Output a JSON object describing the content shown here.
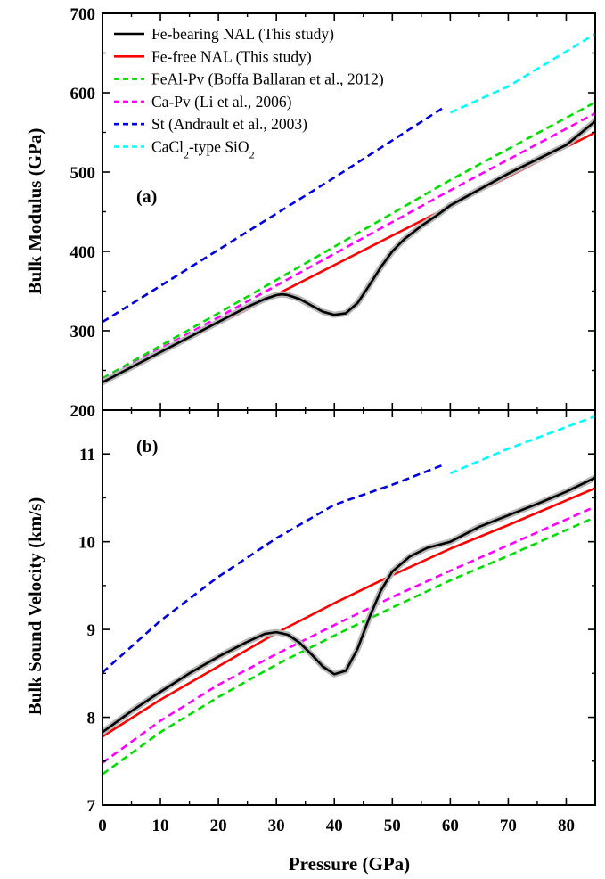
{
  "chart_data": [
    {
      "type": "line",
      "panel_label": "(a)",
      "xlabel": "Pressure (GPa)",
      "ylabel": "Bulk Modulus (GPa)",
      "xlim": [
        0,
        85
      ],
      "ylim": [
        200,
        700
      ],
      "yticks": [
        200,
        300,
        400,
        500,
        600,
        700
      ],
      "grid": false,
      "legend_position": "top-left",
      "series": [
        {
          "name": "Fe-bearing NAL (This study)",
          "color": "#000000",
          "dash": "solid",
          "uncertainty_band": true,
          "points": [
            [
              0,
              235
            ],
            [
              5,
              254
            ],
            [
              10,
              273
            ],
            [
              15,
              292
            ],
            [
              20,
              311
            ],
            [
              25,
              330
            ],
            [
              28,
              340
            ],
            [
              30,
              345
            ],
            [
              31,
              346
            ],
            [
              32,
              345
            ],
            [
              34,
              340
            ],
            [
              36,
              332
            ],
            [
              38,
              324
            ],
            [
              40,
              320
            ],
            [
              42,
              322
            ],
            [
              44,
              335
            ],
            [
              46,
              357
            ],
            [
              48,
              380
            ],
            [
              50,
              400
            ],
            [
              52,
              415
            ],
            [
              55,
              432
            ],
            [
              58,
              447
            ],
            [
              60,
              458
            ],
            [
              65,
              478
            ],
            [
              70,
              498
            ],
            [
              75,
              516
            ],
            [
              80,
              534
            ],
            [
              85,
              564
            ]
          ]
        },
        {
          "name": "Fe-free NAL (This study)",
          "color": "#ff0000",
          "dash": "solid",
          "points": [
            [
              0,
              234
            ],
            [
              85,
              550
            ]
          ]
        },
        {
          "name": "FeAl-Pv (Boffa Ballaran et al., 2012)",
          "color": "#00dd00",
          "dash": "dashed",
          "points": [
            [
              0,
              240
            ],
            [
              20,
              322
            ],
            [
              40,
              406
            ],
            [
              60,
              490
            ],
            [
              85,
              588
            ]
          ]
        },
        {
          "name": "Ca-Pv (Li et al., 2006)",
          "color": "#ff00ff",
          "dash": "dashed",
          "points": [
            [
              0,
              238
            ],
            [
              20,
              317
            ],
            [
              40,
              397
            ],
            [
              60,
              477
            ],
            [
              85,
              574
            ]
          ]
        },
        {
          "name": "St (Andrault et al., 2003)",
          "color": "#0000dd",
          "dash": "dashed",
          "points": [
            [
              0,
              311
            ],
            [
              20,
              402
            ],
            [
              40,
              493
            ],
            [
              59,
              582
            ]
          ]
        },
        {
          "name": "CaCl₂-type SiO₂",
          "legend_parts": [
            "CaCl",
            "2",
            "-type SiO",
            "2"
          ],
          "color": "#00ffff",
          "dash": "dashed",
          "points": [
            [
              60,
              575
            ],
            [
              70,
              608
            ],
            [
              85,
              674
            ]
          ]
        }
      ]
    },
    {
      "type": "line",
      "panel_label": "(b)",
      "xlabel": "Pressure (GPa)",
      "ylabel": "Bulk Sound Velocity (km/s)",
      "xlim": [
        0,
        85
      ],
      "ylim": [
        7,
        11.5
      ],
      "yticks": [
        7,
        8,
        9,
        10,
        11
      ],
      "xticks": [
        0,
        10,
        20,
        30,
        40,
        50,
        60,
        70,
        80
      ],
      "grid": false,
      "series": [
        {
          "name": "Fe-bearing NAL (This study)",
          "color": "#000000",
          "dash": "solid",
          "uncertainty_band": true,
          "points": [
            [
              0,
              7.83
            ],
            [
              5,
              8.07
            ],
            [
              10,
              8.29
            ],
            [
              15,
              8.5
            ],
            [
              20,
              8.69
            ],
            [
              25,
              8.86
            ],
            [
              28,
              8.95
            ],
            [
              30,
              8.97
            ],
            [
              32,
              8.94
            ],
            [
              34,
              8.85
            ],
            [
              36,
              8.72
            ],
            [
              38,
              8.58
            ],
            [
              40,
              8.49
            ],
            [
              42,
              8.53
            ],
            [
              44,
              8.78
            ],
            [
              46,
              9.13
            ],
            [
              48,
              9.44
            ],
            [
              50,
              9.66
            ],
            [
              53,
              9.83
            ],
            [
              56,
              9.93
            ],
            [
              60,
              10.0
            ],
            [
              65,
              10.17
            ],
            [
              70,
              10.3
            ],
            [
              75,
              10.43
            ],
            [
              80,
              10.57
            ],
            [
              85,
              10.73
            ]
          ]
        },
        {
          "name": "Fe-free NAL (This study)",
          "color": "#ff0000",
          "dash": "solid",
          "points": [
            [
              0,
              7.78
            ],
            [
              10,
              8.2
            ],
            [
              20,
              8.58
            ],
            [
              30,
              8.96
            ],
            [
              40,
              9.3
            ],
            [
              50,
              9.62
            ],
            [
              60,
              9.92
            ],
            [
              70,
              10.19
            ],
            [
              85,
              10.61
            ]
          ]
        },
        {
          "name": "FeAl-Pv (Boffa Ballaran et al., 2012)",
          "color": "#00dd00",
          "dash": "dashed",
          "points": [
            [
              0,
              7.35
            ],
            [
              10,
              7.83
            ],
            [
              20,
              8.23
            ],
            [
              30,
              8.6
            ],
            [
              40,
              8.93
            ],
            [
              50,
              9.25
            ],
            [
              60,
              9.56
            ],
            [
              70,
              9.84
            ],
            [
              85,
              10.28
            ]
          ]
        },
        {
          "name": "Ca-Pv (Li et al., 2006)",
          "color": "#ff00ff",
          "dash": "dashed",
          "points": [
            [
              0,
              7.48
            ],
            [
              10,
              7.96
            ],
            [
              20,
              8.37
            ],
            [
              30,
              8.72
            ],
            [
              40,
              9.05
            ],
            [
              50,
              9.37
            ],
            [
              60,
              9.67
            ],
            [
              70,
              9.96
            ],
            [
              85,
              10.4
            ]
          ]
        },
        {
          "name": "St (Andrault et al., 2003)",
          "color": "#0000dd",
          "dash": "dashed",
          "points": [
            [
              0,
              8.51
            ],
            [
              10,
              9.1
            ],
            [
              20,
              9.6
            ],
            [
              30,
              10.04
            ],
            [
              40,
              10.42
            ],
            [
              50,
              10.65
            ],
            [
              59,
              10.88
            ]
          ]
        },
        {
          "name": "CaCl₂-type SiO₂",
          "color": "#00ffff",
          "dash": "dashed",
          "points": [
            [
              60,
              10.78
            ],
            [
              70,
              11.06
            ],
            [
              85,
              11.43
            ]
          ]
        }
      ]
    }
  ]
}
